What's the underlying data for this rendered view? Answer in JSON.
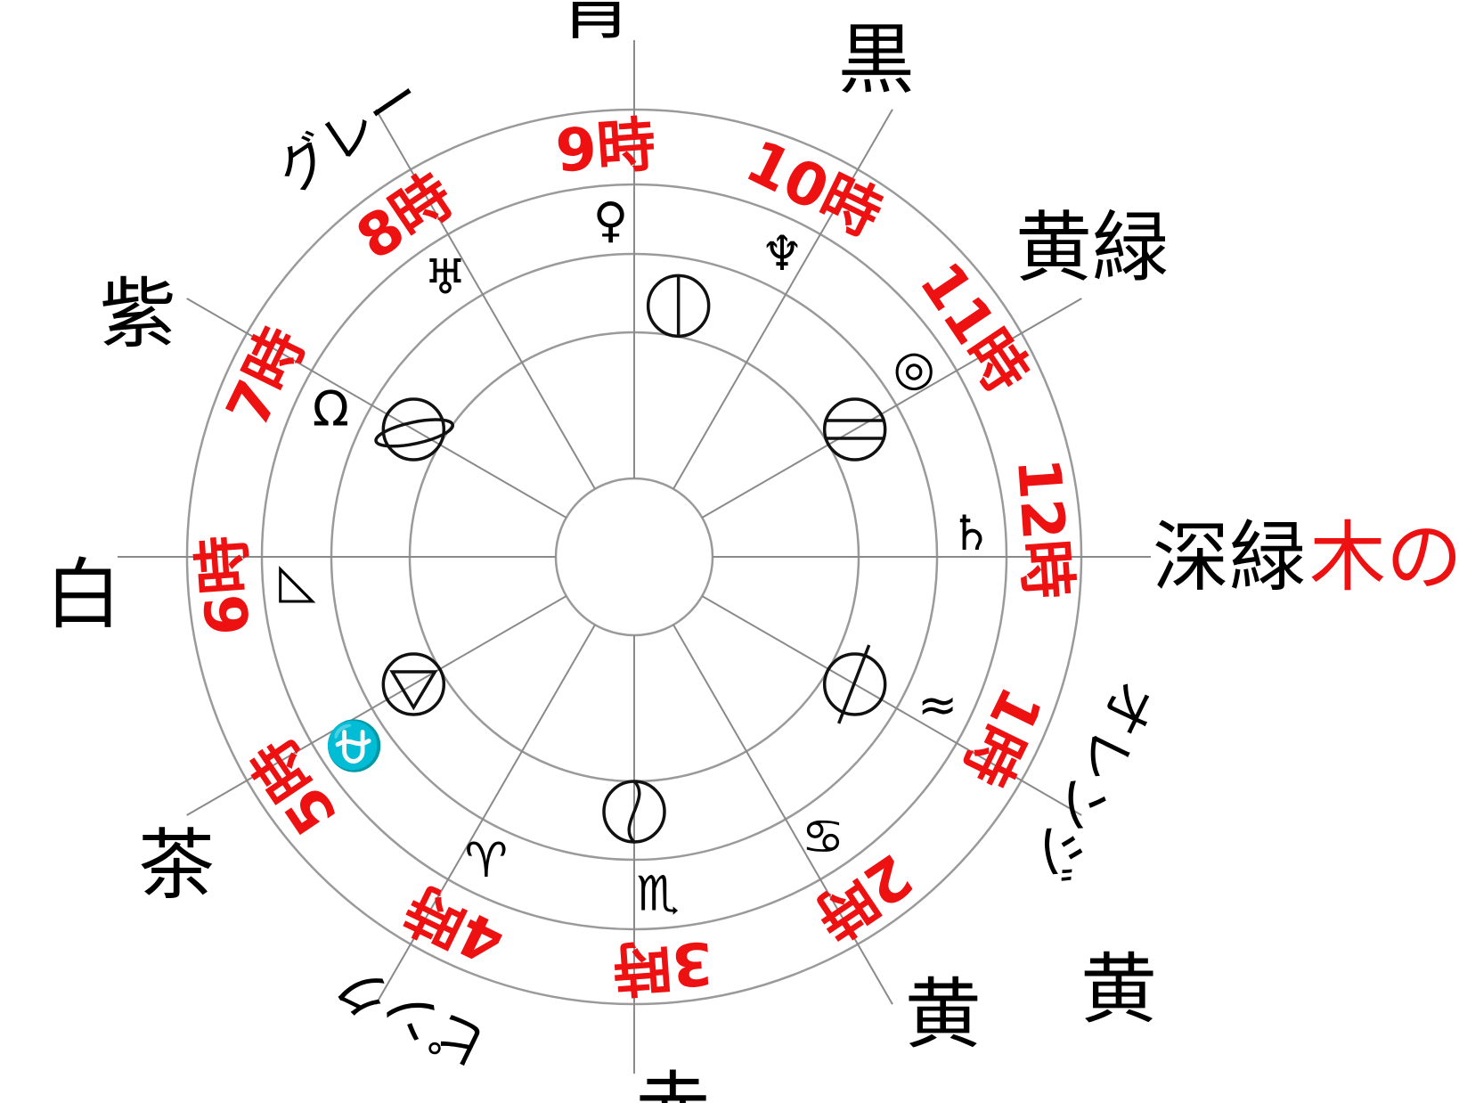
{
  "title": "木の星",
  "colors": {
    "time_text": "#ee1111",
    "title_text": "#ee1111",
    "label_text": "#000000",
    "ring_line": "#9a9a9a"
  },
  "sectors": [
    {
      "time": "12時",
      "color": "深緑",
      "sign": "♄"
    },
    {
      "time": "1時",
      "color": "オレンジ",
      "sign": "≈"
    },
    {
      "time": "2時",
      "color": "黄",
      "sign": "♋"
    },
    {
      "time": "3時",
      "color": "赤",
      "sign": "♏"
    },
    {
      "time": "4時",
      "color": "ピンク",
      "sign": "♈"
    },
    {
      "time": "5時",
      "color": "茶",
      "sign": "⛎"
    },
    {
      "time": "6時",
      "color": "白",
      "sign": "◺"
    },
    {
      "time": "7時",
      "color": "紫",
      "sign": "Ω"
    },
    {
      "time": "8時",
      "color": "グレー",
      "sign": "♅"
    },
    {
      "time": "9時",
      "color": "青",
      "sign": "♀"
    },
    {
      "time": "10時",
      "color": "黒",
      "sign": "♆"
    },
    {
      "time": "11時",
      "color": "黄緑",
      "sign": "◎"
    }
  ],
  "extra_label": "黄",
  "elements": [
    {
      "name": "circle-vertical-icon"
    },
    {
      "name": "circle-double-bar-icon"
    },
    {
      "name": "circle-slash-icon"
    },
    {
      "name": "yin-yang-icon"
    },
    {
      "name": "circle-triangle-icon"
    },
    {
      "name": "ringed-planet-icon"
    }
  ]
}
